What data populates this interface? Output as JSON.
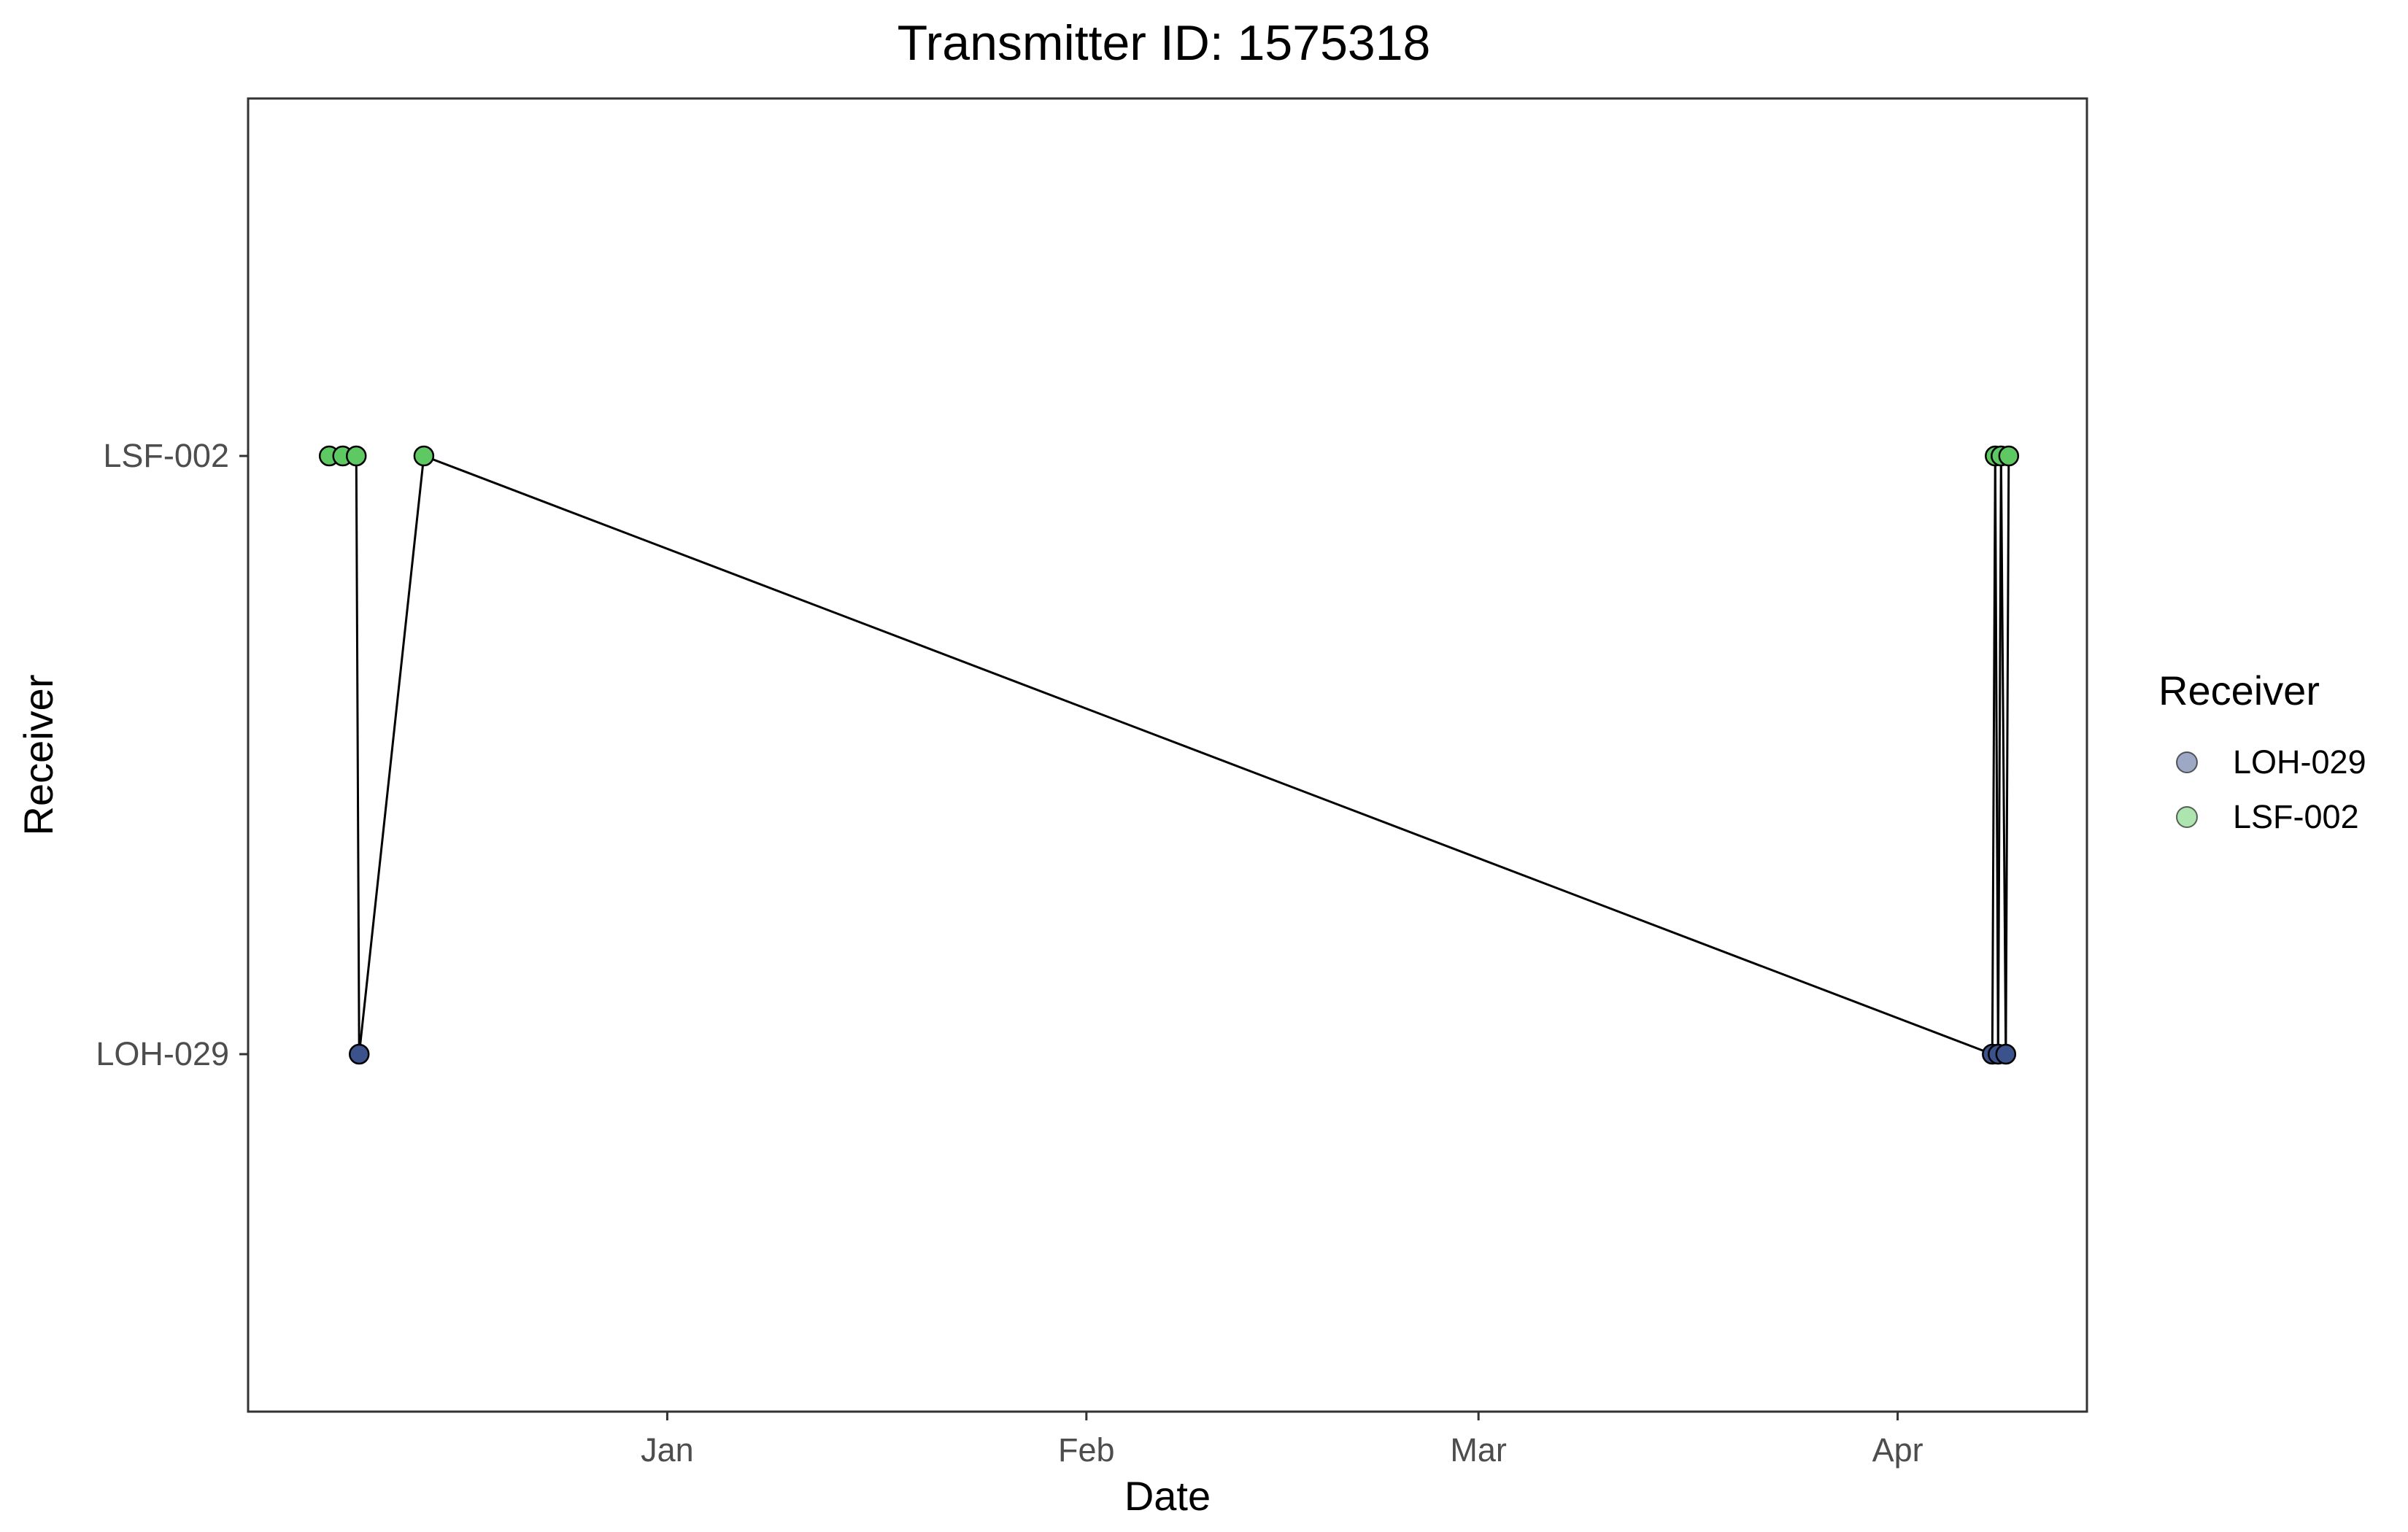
{
  "chart_data": {
    "type": "scatter",
    "title": "Transmitter ID: 1575318",
    "xlabel": "Date",
    "ylabel": "Receiver",
    "x_scale": "date",
    "xlim": [
      "2023-12-01",
      "2024-04-15"
    ],
    "x_ticks": [
      {
        "date": "2024-01-01",
        "label": "Jan"
      },
      {
        "date": "2024-02-01",
        "label": "Feb"
      },
      {
        "date": "2024-03-01",
        "label": "Mar"
      },
      {
        "date": "2024-04-01",
        "label": "Apr"
      }
    ],
    "categories": [
      "LOH-029",
      "LSF-002"
    ],
    "grid": false,
    "legend": {
      "title": "Receiver",
      "position": "right",
      "entries": [
        {
          "name": "LOH-029",
          "color": "#3b528b"
        },
        {
          "name": "LSF-002",
          "color": "#5ec962"
        }
      ]
    },
    "points": [
      {
        "date": "2023-12-07",
        "receiver": "LSF-002"
      },
      {
        "date": "2023-12-08",
        "receiver": "LSF-002"
      },
      {
        "date": "2023-12-09",
        "receiver": "LSF-002"
      },
      {
        "date": "2023-12-09",
        "receiver": "LOH-029"
      },
      {
        "date": "2023-12-14",
        "receiver": "LSF-002"
      },
      {
        "date": "2024-04-08",
        "receiver": "LOH-029"
      },
      {
        "date": "2024-04-08",
        "receiver": "LSF-002"
      },
      {
        "date": "2024-04-08",
        "receiver": "LOH-029"
      },
      {
        "date": "2024-04-08",
        "receiver": "LSF-002"
      },
      {
        "date": "2024-04-09",
        "receiver": "LOH-029"
      },
      {
        "date": "2024-04-09",
        "receiver": "LSF-002"
      }
    ],
    "path": "connect points in time order",
    "colors": {
      "LOH-029": "#3b528b",
      "LSF-002": "#5ec962",
      "line": "#000000"
    }
  }
}
